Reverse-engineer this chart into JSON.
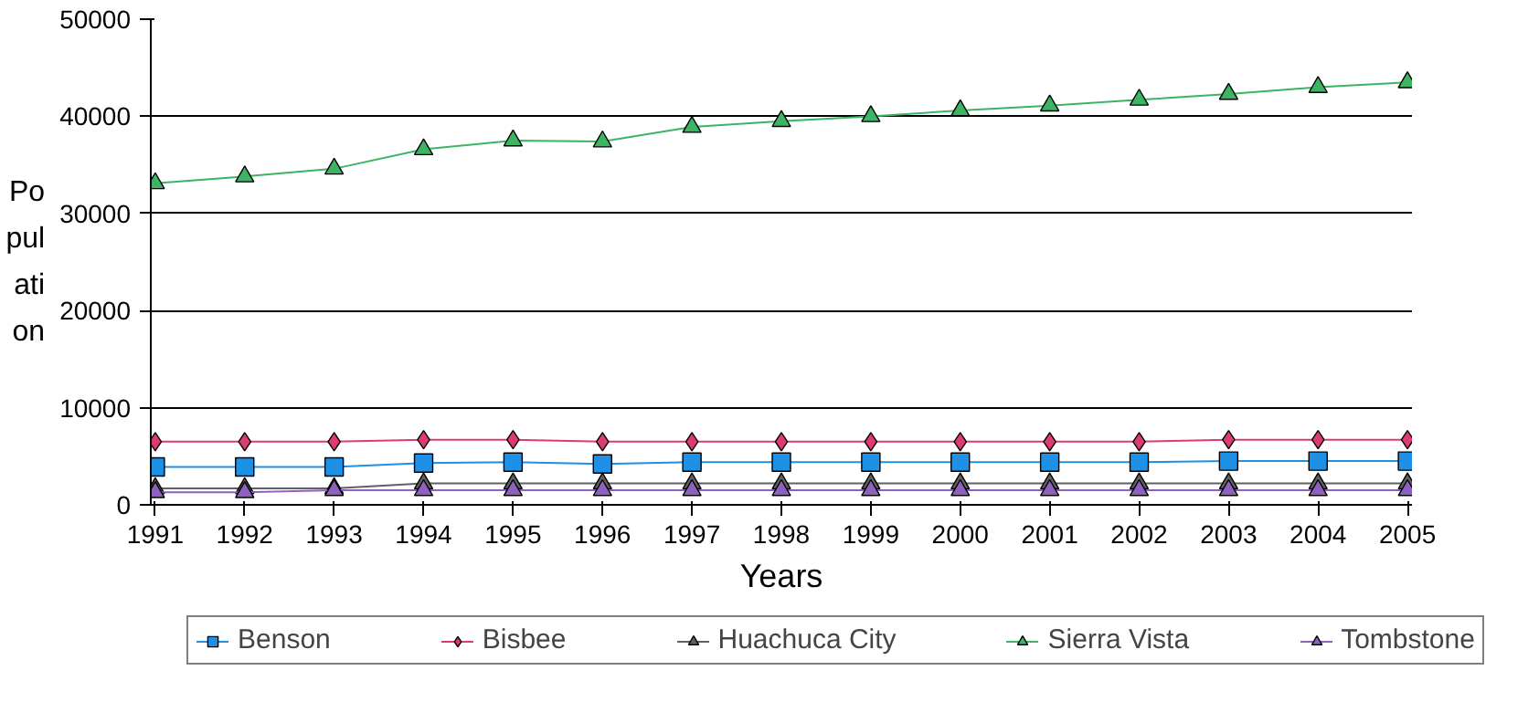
{
  "chart_data": {
    "type": "line",
    "xlabel": "Years",
    "ylabel": "Population",
    "categories": [
      "1991",
      "1992",
      "1993",
      "1994",
      "1995",
      "1996",
      "1997",
      "1998",
      "1999",
      "2000",
      "2001",
      "2002",
      "2003",
      "2004",
      "2005"
    ],
    "ylim": [
      0,
      50000
    ],
    "yticks": [
      0,
      10000,
      20000,
      30000,
      40000,
      50000
    ],
    "grid": "y",
    "legend": "bottom",
    "series": [
      {
        "name": "Benson",
        "color": "#1e90e6",
        "marker": "square",
        "values": [
          3900,
          3900,
          3900,
          4300,
          4400,
          4200,
          4400,
          4400,
          4400,
          4400,
          4400,
          4400,
          4500,
          4500,
          4500
        ]
      },
      {
        "name": "Bisbee",
        "color": "#dc3c6e",
        "marker": "diamond",
        "values": [
          6500,
          6500,
          6500,
          6700,
          6700,
          6500,
          6500,
          6500,
          6500,
          6500,
          6500,
          6500,
          6700,
          6700,
          6700
        ]
      },
      {
        "name": "Huachuca City",
        "color": "#606060",
        "marker": "triangle",
        "values": [
          1700,
          1700,
          1700,
          2200,
          2200,
          2200,
          2200,
          2200,
          2200,
          2200,
          2200,
          2200,
          2200,
          2200,
          2200
        ]
      },
      {
        "name": "Sierra Vista",
        "color": "#3cb464",
        "marker": "triangle",
        "values": [
          33100,
          33800,
          34600,
          36600,
          37500,
          37400,
          38900,
          39500,
          40000,
          40600,
          41100,
          41700,
          42300,
          43000,
          43500
        ]
      },
      {
        "name": "Tombstone",
        "color": "#9060c0",
        "marker": "triangle",
        "values": [
          1300,
          1300,
          1500,
          1500,
          1500,
          1500,
          1500,
          1500,
          1500,
          1500,
          1500,
          1500,
          1500,
          1500,
          1500
        ]
      }
    ]
  }
}
